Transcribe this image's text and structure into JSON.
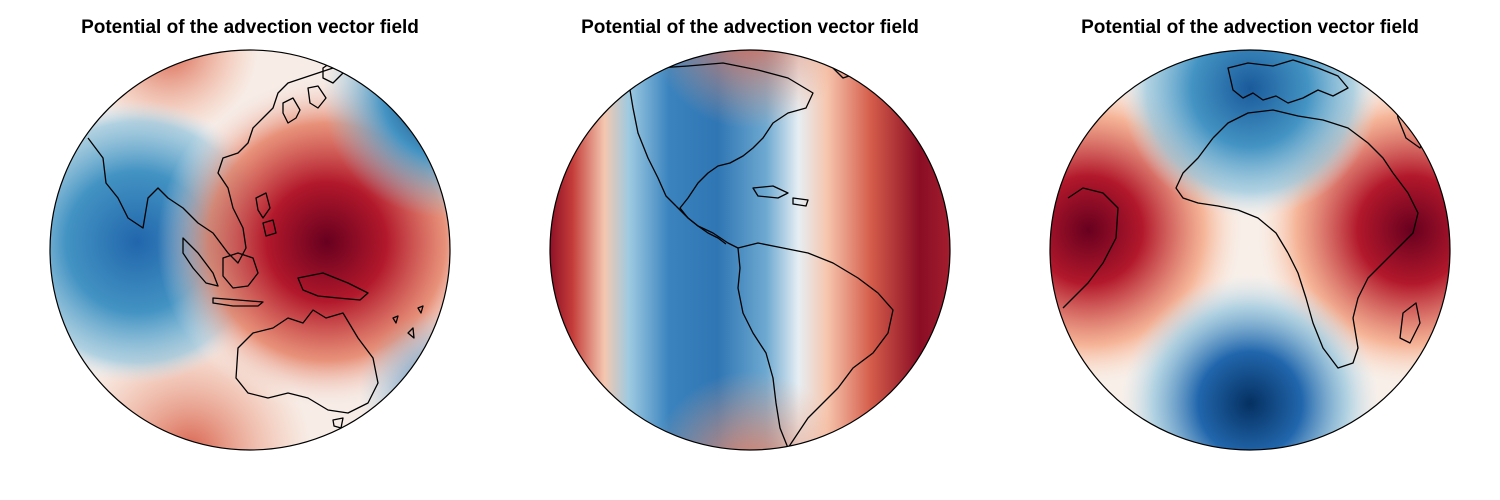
{
  "colors": {
    "red_max": "#67001f",
    "red_mid": "#d6604d",
    "neutral": "#f7f7f7",
    "blue_mid": "#4393c3",
    "blue_max": "#053061",
    "coastline": "#000000"
  },
  "panels": [
    {
      "title": "Potential of the advection vector field",
      "view": "Asia / Western Pacific / Australia"
    },
    {
      "title": "Potential of the advection vector field",
      "view": "Americas"
    },
    {
      "title": "Potential of the advection vector field",
      "view": "Africa / Europe"
    }
  ]
}
